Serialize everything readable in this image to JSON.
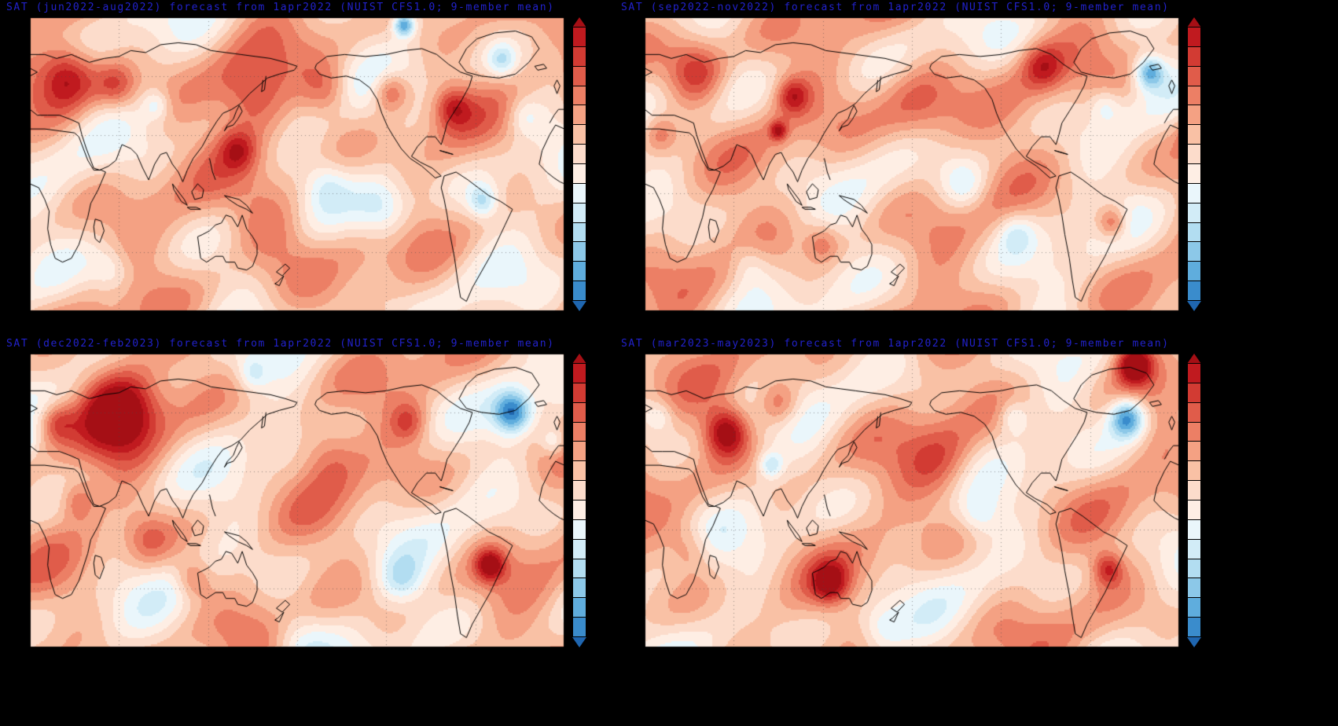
{
  "figure": {
    "background": "#000000",
    "title_color": "#2222cc",
    "coastline_color": "#000000",
    "description": "Four-panel seasonal surface air temperature anomaly forecast maps initialized 1apr2022, NUIST CFS1.0, 9-member ensemble mean"
  },
  "chart_data": [
    {
      "type": "heatmap",
      "title": "SAT (jun2022-aug2022) forecast from 1apr2022 (NUIST CFS1.0; 9-member mean)",
      "variable": "SAT",
      "season": "jun2022-aug2022",
      "init_date": "1apr2022",
      "model": "NUIST CFS1.0",
      "ensemble": "9-member mean",
      "projection": {
        "lon_range": [
          0,
          360
        ],
        "lat_range": [
          -60,
          90
        ],
        "gridlines": "dotted, 60 deg lon x 30 deg lat"
      },
      "legend": "vertical colorbar, warm red at top to cold blue at bottom, no numeric tick labels",
      "anomaly_centers": [
        {
          "lon": 25,
          "lat": 60,
          "radius_deg": 20,
          "intensity": 0.8
        },
        {
          "lon": 58,
          "lat": 55,
          "radius_deg": 14,
          "intensity": 0.5
        },
        {
          "lon": 150,
          "lat": 48,
          "radius_deg": 24,
          "intensity": 0.5
        },
        {
          "lon": 200,
          "lat": 52,
          "radius_deg": 16,
          "intensity": 0.4
        },
        {
          "lon": 243,
          "lat": 52,
          "radius_deg": 12,
          "intensity": 0.55
        },
        {
          "lon": 285,
          "lat": 44,
          "radius_deg": 12,
          "intensity": 0.5
        },
        {
          "lon": 165,
          "lat": -18,
          "radius_deg": 28,
          "intensity": 0.45
        },
        {
          "lon": 238,
          "lat": -8,
          "radius_deg": 20,
          "intensity": -0.55
        },
        {
          "lon": 200,
          "lat": 5,
          "radius_deg": 14,
          "intensity": -0.25
        },
        {
          "lon": 305,
          "lat": -4,
          "radius_deg": 10,
          "intensity": -0.5
        },
        {
          "lon": 252,
          "lat": 86,
          "radius_deg": 7,
          "intensity": -0.9
        },
        {
          "lon": 318,
          "lat": 68,
          "radius_deg": 10,
          "intensity": -0.45
        },
        {
          "lon": 333,
          "lat": 40,
          "radius_deg": 12,
          "intensity": -0.3
        },
        {
          "lon": 85,
          "lat": 45,
          "radius_deg": 9,
          "intensity": -0.35
        },
        {
          "lon": 55,
          "lat": -40,
          "radius_deg": 14,
          "intensity": -0.3
        },
        {
          "lon": 140,
          "lat": 22,
          "radius_deg": 12,
          "intensity": 0.45
        }
      ]
    },
    {
      "type": "heatmap",
      "title": "SAT (sep2022-nov2022) forecast from 1apr2022 (NUIST CFS1.0; 9-member mean)",
      "variable": "SAT",
      "season": "sep2022-nov2022",
      "init_date": "1apr2022",
      "model": "NUIST CFS1.0",
      "ensemble": "9-member mean",
      "projection": {
        "lon_range": [
          0,
          360
        ],
        "lat_range": [
          -60,
          90
        ],
        "gridlines": "dotted, 60 deg lon x 30 deg lat"
      },
      "legend": "vertical colorbar, warm red at top to cold blue at bottom, no numeric tick labels",
      "anomaly_centers": [
        {
          "lon": 35,
          "lat": 62,
          "radius_deg": 20,
          "intensity": 0.7
        },
        {
          "lon": 100,
          "lat": 50,
          "radius_deg": 11,
          "intensity": 0.55
        },
        {
          "lon": 185,
          "lat": 45,
          "radius_deg": 28,
          "intensity": 0.5
        },
        {
          "lon": 268,
          "lat": 65,
          "radius_deg": 14,
          "intensity": 0.5
        },
        {
          "lon": 340,
          "lat": 62,
          "radius_deg": 10,
          "intensity": -0.8
        },
        {
          "lon": 310,
          "lat": 45,
          "radius_deg": 10,
          "intensity": -0.3
        },
        {
          "lon": 215,
          "lat": 4,
          "radius_deg": 15,
          "intensity": -0.35
        },
        {
          "lon": 250,
          "lat": -20,
          "radius_deg": 12,
          "intensity": -0.3
        },
        {
          "lon": 315,
          "lat": -15,
          "radius_deg": 10,
          "intensity": 0.55
        },
        {
          "lon": 70,
          "lat": -35,
          "radius_deg": 14,
          "intensity": -0.3
        },
        {
          "lon": 120,
          "lat": -25,
          "radius_deg": 12,
          "intensity": 0.35
        },
        {
          "lon": 90,
          "lat": 32,
          "radius_deg": 6,
          "intensity": 0.6
        },
        {
          "lon": 10,
          "lat": 30,
          "radius_deg": 12,
          "intensity": 0.4
        }
      ]
    },
    {
      "type": "heatmap",
      "title": "SAT (dec2022-feb2023) forecast from 1apr2022 (NUIST CFS1.0; 9-member mean)",
      "variable": "SAT",
      "season": "dec2022-feb2023",
      "init_date": "1apr2022",
      "model": "NUIST CFS1.0",
      "ensemble": "9-member mean",
      "projection": {
        "lon_range": [
          0,
          360
        ],
        "lat_range": [
          -60,
          90
        ],
        "gridlines": "dotted, 60 deg lon x 30 deg lat"
      },
      "legend": "vertical colorbar, warm red at top to cold blue at bottom, no numeric tick labels",
      "anomaly_centers": [
        {
          "lon": 60,
          "lat": 62,
          "radius_deg": 26,
          "intensity": 0.95
        },
        {
          "lon": 18,
          "lat": 55,
          "radius_deg": 12,
          "intensity": 0.5
        },
        {
          "lon": 325,
          "lat": 60,
          "radius_deg": 13,
          "intensity": -0.95
        },
        {
          "lon": 353,
          "lat": 45,
          "radius_deg": 9,
          "intensity": -0.4
        },
        {
          "lon": 150,
          "lat": 80,
          "radius_deg": 10,
          "intensity": -0.35
        },
        {
          "lon": 200,
          "lat": 40,
          "radius_deg": 20,
          "intensity": 0.4
        },
        {
          "lon": 255,
          "lat": 55,
          "radius_deg": 12,
          "intensity": 0.4
        },
        {
          "lon": 310,
          "lat": -18,
          "radius_deg": 10,
          "intensity": 0.7
        },
        {
          "lon": 250,
          "lat": -25,
          "radius_deg": 15,
          "intensity": -0.4
        },
        {
          "lon": 110,
          "lat": -25,
          "radius_deg": 12,
          "intensity": 0.4
        },
        {
          "lon": 180,
          "lat": -55,
          "radius_deg": 20,
          "intensity": -0.35
        },
        {
          "lon": 80,
          "lat": -5,
          "radius_deg": 15,
          "intensity": 0.3
        },
        {
          "lon": 32,
          "lat": 15,
          "radius_deg": 12,
          "intensity": 0.4
        }
      ]
    },
    {
      "type": "heatmap",
      "title": "SAT (mar2023-may2023) forecast from 1apr2022 (NUIST CFS1.0; 9-member mean)",
      "variable": "SAT",
      "season": "mar2023-may2023",
      "init_date": "1apr2022",
      "model": "NUIST CFS1.0",
      "ensemble": "9-member mean",
      "projection": {
        "lon_range": [
          0,
          360
        ],
        "lat_range": [
          -60,
          90
        ],
        "gridlines": "dotted, 60 deg lon x 30 deg lat"
      },
      "legend": "vertical colorbar, warm red at top to cold blue at bottom, no numeric tick labels",
      "anomaly_centers": [
        {
          "lon": 55,
          "lat": 50,
          "radius_deg": 15,
          "intensity": 0.85
        },
        {
          "lon": 90,
          "lat": 65,
          "radius_deg": 14,
          "intensity": 0.5
        },
        {
          "lon": 330,
          "lat": 85,
          "radius_deg": 12,
          "intensity": 0.9
        },
        {
          "lon": 325,
          "lat": 57,
          "radius_deg": 12,
          "intensity": -0.95
        },
        {
          "lon": 10,
          "lat": 58,
          "radius_deg": 10,
          "intensity": -0.3
        },
        {
          "lon": 85,
          "lat": 33,
          "radius_deg": 8,
          "intensity": -0.45
        },
        {
          "lon": 125,
          "lat": -27,
          "radius_deg": 12,
          "intensity": 0.6
        },
        {
          "lon": 312,
          "lat": -20,
          "radius_deg": 10,
          "intensity": 0.55
        },
        {
          "lon": 200,
          "lat": 33,
          "radius_deg": 24,
          "intensity": 0.4
        },
        {
          "lon": 225,
          "lat": 8,
          "radius_deg": 14,
          "intensity": -0.3
        },
        {
          "lon": 160,
          "lat": -50,
          "radius_deg": 15,
          "intensity": -0.3
        },
        {
          "lon": 248,
          "lat": 58,
          "radius_deg": 10,
          "intensity": -0.35
        },
        {
          "lon": 30,
          "lat": -10,
          "radius_deg": 15,
          "intensity": 0.35
        }
      ]
    }
  ],
  "colorbar": {
    "orientation": "vertical",
    "tick_labels": [],
    "colors_top_to_bottom": [
      "#a50f15",
      "#c01a1f",
      "#d23b33",
      "#e05c4a",
      "#ec7f65",
      "#f4a183",
      "#f9c1a5",
      "#fcdccb",
      "#feeee4",
      "#eaf6fb",
      "#d2ecf7",
      "#b2ddf1",
      "#8cc8e8",
      "#5faddd",
      "#3a8ccc",
      "#1f66b0"
    ]
  }
}
